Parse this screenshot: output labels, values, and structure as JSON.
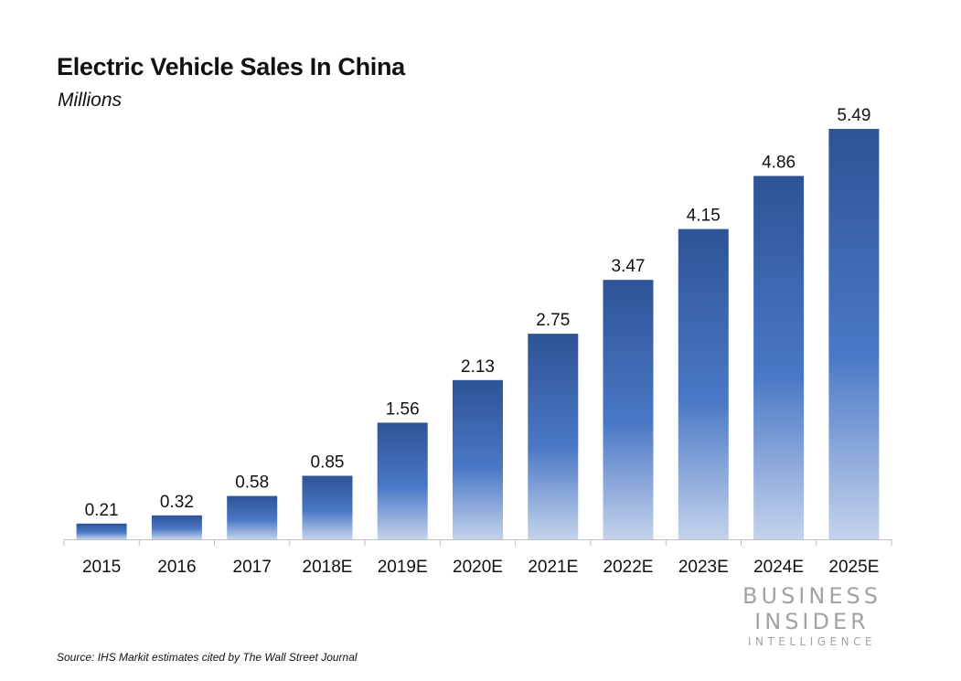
{
  "chart_data": {
    "type": "bar",
    "title": "Electric Vehicle Sales In China",
    "subtitle": "Millions",
    "categories": [
      "2015",
      "2016",
      "2017",
      "2018E",
      "2019E",
      "2020E",
      "2021E",
      "2022E",
      "2023E",
      "2024E",
      "2025E"
    ],
    "values": [
      0.21,
      0.32,
      0.58,
      0.85,
      1.56,
      2.13,
      2.75,
      3.47,
      4.15,
      4.86,
      5.49
    ],
    "value_labels": [
      "0.21",
      "0.32",
      "0.58",
      "0.85",
      "1.56",
      "2.13",
      "2.75",
      "3.47",
      "4.15",
      "4.86",
      "5.49"
    ],
    "xlabel": "",
    "ylabel": "",
    "ylim": [
      0,
      5.49
    ],
    "grid": false,
    "legend": "none",
    "colors": {
      "bar_top": "#2e5396",
      "bar_mid": "#4a78c6",
      "bar_bottom": "#c4d3ec",
      "axis": "#bfbfbf"
    }
  },
  "source": "Source: IHS Markit estimates cited by The Wall Street Journal",
  "logo": {
    "line1": "BUSINESS",
    "line2": "INSIDER",
    "line3": "INTELLIGENCE"
  }
}
